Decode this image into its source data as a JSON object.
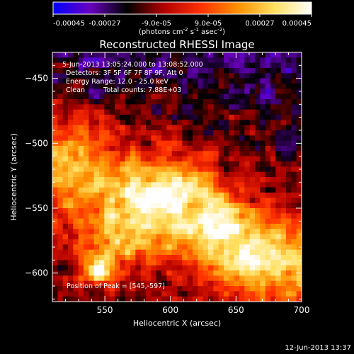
{
  "colorbar": {
    "tick_labels": [
      "-0.00045",
      "-0.00027",
      "-9.0e-05",
      "9.0e-05",
      "0.00027",
      "0.00045"
    ],
    "tick_values": [
      -0.00045,
      -0.00027,
      -9e-05,
      9e-05,
      0.00027,
      0.00045
    ],
    "range": [
      -0.00045,
      0.00045
    ],
    "units_prefix": "(photons cm",
    "units_exp1": "-2",
    "units_mid": " s",
    "units_exp2": "-1",
    "units_mid2": " asec",
    "units_exp3": "-2",
    "units_suffix": ")",
    "colormap": [
      "#0000ff",
      "#6a00c0",
      "#000000",
      "#b00000",
      "#ff3000",
      "#ff9000",
      "#ffe060",
      "#ffffff"
    ]
  },
  "chart_data": {
    "type": "heatmap",
    "title": "Reconstructed RHESSI Image",
    "xlabel": "Heliocentric X (arcsec)",
    "ylabel": "Heliocentric Y (arcsec)",
    "xlim": [
      510,
      700
    ],
    "ylim": [
      -622,
      -430
    ],
    "x_ticks": [
      550,
      600,
      650,
      700
    ],
    "y_ticks": [
      -450,
      -500,
      -550,
      -600
    ],
    "x_tick_labels": [
      "550",
      "600",
      "650",
      "700"
    ],
    "y_tick_labels": [
      "−450",
      "−500",
      "−550",
      "−600"
    ],
    "annotations": [
      "5-Jun-2013 13:05:24.000 to 13:08:52.000",
      "Detectors: 3F 5F 6F 7F 8F 9F, Att 0",
      "Energy Range: 12.0 - 25.0 keV",
      "Clean",
      "Total counts: 7.88E+03"
    ],
    "peak_label": "Position of Peak = [545,-597]",
    "peak": [
      545,
      -597
    ],
    "emission_ridge": [
      {
        "x": 545,
        "y": -597
      },
      {
        "x": 560,
        "y": -575
      },
      {
        "x": 585,
        "y": -545
      },
      {
        "x": 610,
        "y": -530
      },
      {
        "x": 635,
        "y": -560
      },
      {
        "x": 660,
        "y": -590
      }
    ]
  },
  "footer": {
    "timestamp": "12-Jun-2013 13:37"
  }
}
